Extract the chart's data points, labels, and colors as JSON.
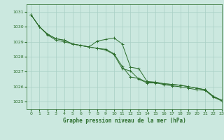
{
  "title": "Graphe pression niveau de la mer (hPa)",
  "background_color": "#cbe8df",
  "grid_color": "#a8cfc4",
  "line_color": "#2d6e2d",
  "xlim": [
    -0.5,
    23
  ],
  "ylim": [
    1024.5,
    1031.5
  ],
  "yticks": [
    1025,
    1026,
    1027,
    1028,
    1029,
    1030,
    1031
  ],
  "xticks": [
    0,
    1,
    2,
    3,
    4,
    5,
    6,
    7,
    8,
    9,
    10,
    11,
    12,
    13,
    14,
    15,
    16,
    17,
    18,
    19,
    20,
    21,
    22,
    23
  ],
  "series1_x": [
    0,
    1,
    2,
    3,
    4,
    5,
    6,
    7,
    8,
    9,
    10,
    11,
    12,
    13,
    14,
    15,
    16,
    17,
    18,
    19,
    20,
    21,
    22,
    23
  ],
  "series1_y": [
    1030.8,
    1030.0,
    1029.5,
    1029.2,
    1029.1,
    1028.85,
    1028.75,
    1028.65,
    1029.05,
    1029.15,
    1029.25,
    1028.85,
    1027.3,
    1027.2,
    1026.35,
    1026.3,
    1026.2,
    1026.15,
    1026.1,
    1026.0,
    1025.9,
    1025.8,
    1025.35,
    1025.1
  ],
  "series2_x": [
    0,
    1,
    2,
    3,
    4,
    5,
    6,
    7,
    8,
    9,
    10,
    11,
    12,
    13,
    14,
    15,
    16,
    17,
    18,
    19,
    20,
    21,
    22,
    23
  ],
  "series2_y": [
    1030.8,
    1030.0,
    1029.5,
    1029.2,
    1029.1,
    1028.85,
    1028.75,
    1028.65,
    1028.55,
    1028.5,
    1028.2,
    1027.35,
    1026.65,
    1026.55,
    1026.3,
    1026.3,
    1026.2,
    1026.15,
    1026.1,
    1026.0,
    1025.9,
    1025.8,
    1025.35,
    1025.1
  ],
  "series3_x": [
    0,
    1,
    2,
    3,
    4,
    5,
    6,
    7,
    8,
    9,
    10,
    11,
    12,
    13,
    14,
    15,
    16,
    17,
    18,
    19,
    20,
    21,
    22,
    23
  ],
  "series3_y": [
    1030.8,
    1030.0,
    1029.45,
    1029.1,
    1029.0,
    1028.85,
    1028.75,
    1028.65,
    1028.55,
    1028.45,
    1028.15,
    1027.2,
    1027.05,
    1026.5,
    1026.25,
    1026.25,
    1026.15,
    1026.05,
    1026.0,
    1025.9,
    1025.8,
    1025.75,
    1025.3,
    1025.05
  ]
}
